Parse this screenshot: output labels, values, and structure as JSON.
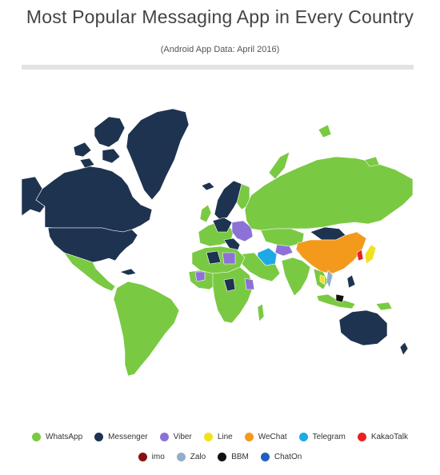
{
  "header": {
    "title": "Most Popular Messaging App in Every Country",
    "subtitle": "(Android App Data: April 2016)"
  },
  "colors": {
    "whatsapp": "#7ac943",
    "messenger": "#1e3350",
    "viber": "#8c72d6",
    "line": "#f2e21e",
    "wechat": "#f39a1c",
    "telegram": "#1ea9e6",
    "kakaotalk": "#e82222",
    "imo": "#8b0e0e",
    "zalo": "#93aec9",
    "bbm": "#111111",
    "chaton": "#1f5fbf"
  },
  "legend": {
    "row1": [
      {
        "label": "WhatsApp",
        "color": "#7ac943"
      },
      {
        "label": "Messenger",
        "color": "#1e3350"
      },
      {
        "label": "Viber",
        "color": "#8c72d6"
      },
      {
        "label": "Line",
        "color": "#f2e21e"
      },
      {
        "label": "WeChat",
        "color": "#f39a1c"
      },
      {
        "label": "Telegram",
        "color": "#1ea9e6"
      },
      {
        "label": "KakaoTalk",
        "color": "#e82222"
      }
    ],
    "row2": [
      {
        "label": "imo",
        "color": "#8b0e0e"
      },
      {
        "label": "Zalo",
        "color": "#93aec9"
      },
      {
        "label": "BBM",
        "color": "#111111"
      },
      {
        "label": "ChatOn",
        "color": "#1f5fbf"
      }
    ]
  }
}
